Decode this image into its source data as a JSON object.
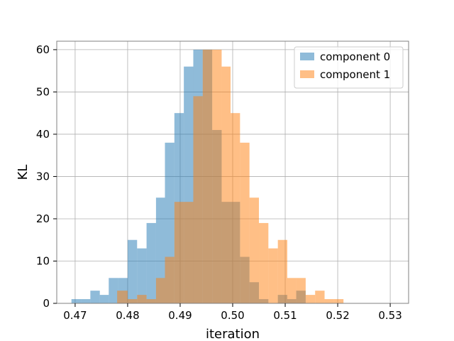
{
  "chart_data": {
    "type": "histogram",
    "title": "",
    "xlabel": "iteration",
    "ylabel": "KL",
    "xlim": [
      0.4665,
      0.5335
    ],
    "ylim": [
      0,
      62
    ],
    "xticks": [
      0.47,
      0.48,
      0.49,
      0.5,
      0.51,
      0.52,
      0.53
    ],
    "xtick_labels": [
      "0.47",
      "0.48",
      "0.49",
      "0.50",
      "0.51",
      "0.52",
      "0.53"
    ],
    "yticks": [
      0,
      10,
      20,
      30,
      40,
      50,
      60
    ],
    "ytick_labels": [
      "0",
      "10",
      "20",
      "30",
      "40",
      "50",
      "60"
    ],
    "grid": true,
    "legend_position": "top-right",
    "series": [
      {
        "name": "component 0",
        "color": "#1f77b4",
        "alpha": 0.5,
        "bins": [
          [
            0.4693,
            0.4711,
            1
          ],
          [
            0.4711,
            0.4729,
            1
          ],
          [
            0.4729,
            0.4747,
            3
          ],
          [
            0.4747,
            0.4764,
            2
          ],
          [
            0.4764,
            0.4782,
            6
          ],
          [
            0.4782,
            0.48,
            6
          ],
          [
            0.48,
            0.4818,
            15
          ],
          [
            0.4818,
            0.4836,
            13
          ],
          [
            0.4836,
            0.4854,
            19
          ],
          [
            0.4854,
            0.4871,
            25
          ],
          [
            0.4871,
            0.4889,
            38
          ],
          [
            0.4889,
            0.4907,
            45
          ],
          [
            0.4907,
            0.4925,
            56
          ],
          [
            0.4925,
            0.4943,
            60
          ],
          [
            0.4943,
            0.4961,
            60
          ],
          [
            0.4961,
            0.4979,
            41
          ],
          [
            0.4979,
            0.4996,
            24
          ],
          [
            0.4996,
            0.5014,
            24
          ],
          [
            0.5014,
            0.5032,
            11
          ],
          [
            0.5032,
            0.505,
            5
          ],
          [
            0.505,
            0.5068,
            1
          ],
          [
            0.5068,
            0.5086,
            0
          ],
          [
            0.5086,
            0.5104,
            2
          ],
          [
            0.5104,
            0.5121,
            1
          ],
          [
            0.5121,
            0.5139,
            3
          ]
        ]
      },
      {
        "name": "component 1",
        "color": "#ff7f0e",
        "alpha": 0.5,
        "bins": [
          [
            0.478,
            0.48,
            3
          ],
          [
            0.48,
            0.4818,
            1
          ],
          [
            0.4818,
            0.4836,
            2
          ],
          [
            0.4836,
            0.4854,
            1
          ],
          [
            0.4854,
            0.4871,
            6
          ],
          [
            0.4871,
            0.4889,
            11
          ],
          [
            0.4889,
            0.4907,
            24
          ],
          [
            0.4907,
            0.4925,
            24
          ],
          [
            0.4925,
            0.4943,
            49
          ],
          [
            0.4943,
            0.4961,
            60
          ],
          [
            0.4961,
            0.4979,
            60
          ],
          [
            0.4979,
            0.4996,
            56
          ],
          [
            0.4996,
            0.5014,
            45
          ],
          [
            0.5014,
            0.5032,
            38
          ],
          [
            0.5032,
            0.505,
            25
          ],
          [
            0.505,
            0.5068,
            19
          ],
          [
            0.5068,
            0.5086,
            13
          ],
          [
            0.5086,
            0.5104,
            15
          ],
          [
            0.5104,
            0.5121,
            6
          ],
          [
            0.5121,
            0.5139,
            6
          ],
          [
            0.5139,
            0.5157,
            2
          ],
          [
            0.5157,
            0.5175,
            3
          ],
          [
            0.5175,
            0.5193,
            1
          ],
          [
            0.5193,
            0.5211,
            1
          ]
        ]
      }
    ]
  }
}
